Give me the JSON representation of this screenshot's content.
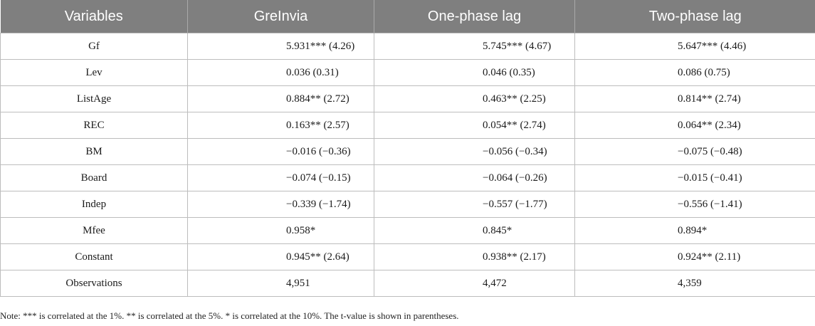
{
  "table": {
    "headers": [
      "Variables",
      "GreInvia",
      "One-phase lag",
      "Two-phase lag"
    ],
    "rows": [
      [
        "Gf",
        "5.931*** (4.26)",
        "5.745*** (4.67)",
        "5.647*** (4.46)"
      ],
      [
        "Lev",
        "0.036 (0.31)",
        "0.046 (0.35)",
        "0.086 (0.75)"
      ],
      [
        "ListAge",
        "0.884** (2.72)",
        "0.463** (2.25)",
        "0.814** (2.74)"
      ],
      [
        "REC",
        "0.163** (2.57)",
        "0.054** (2.74)",
        "0.064** (2.34)"
      ],
      [
        "BM",
        "−0.016 (−0.36)",
        "−0.056 (−0.34)",
        "−0.075 (−0.48)"
      ],
      [
        "Board",
        "−0.074 (−0.15)",
        "−0.064 (−0.26)",
        "−0.015 (−0.41)"
      ],
      [
        "Indep",
        "−0.339 (−1.74)",
        "−0.557 (−1.77)",
        "−0.556 (−1.41)"
      ],
      [
        "Mfee",
        "0.958*",
        "0.845*",
        "0.894*"
      ],
      [
        "Constant",
        "0.945** (2.64)",
        "0.938** (2.17)",
        "0.924** (2.11)"
      ],
      [
        "Observations",
        "4,951",
        "4,472",
        "4,359"
      ]
    ]
  },
  "note": "Note: *** is correlated at the 1%. ** is correlated at the 5%. * is correlated at the 10%. The t-value is shown in parentheses.",
  "colors": {
    "header_bg": "#7f7f7f",
    "header_text": "#ffffff",
    "grid": "#bdbdbd"
  }
}
